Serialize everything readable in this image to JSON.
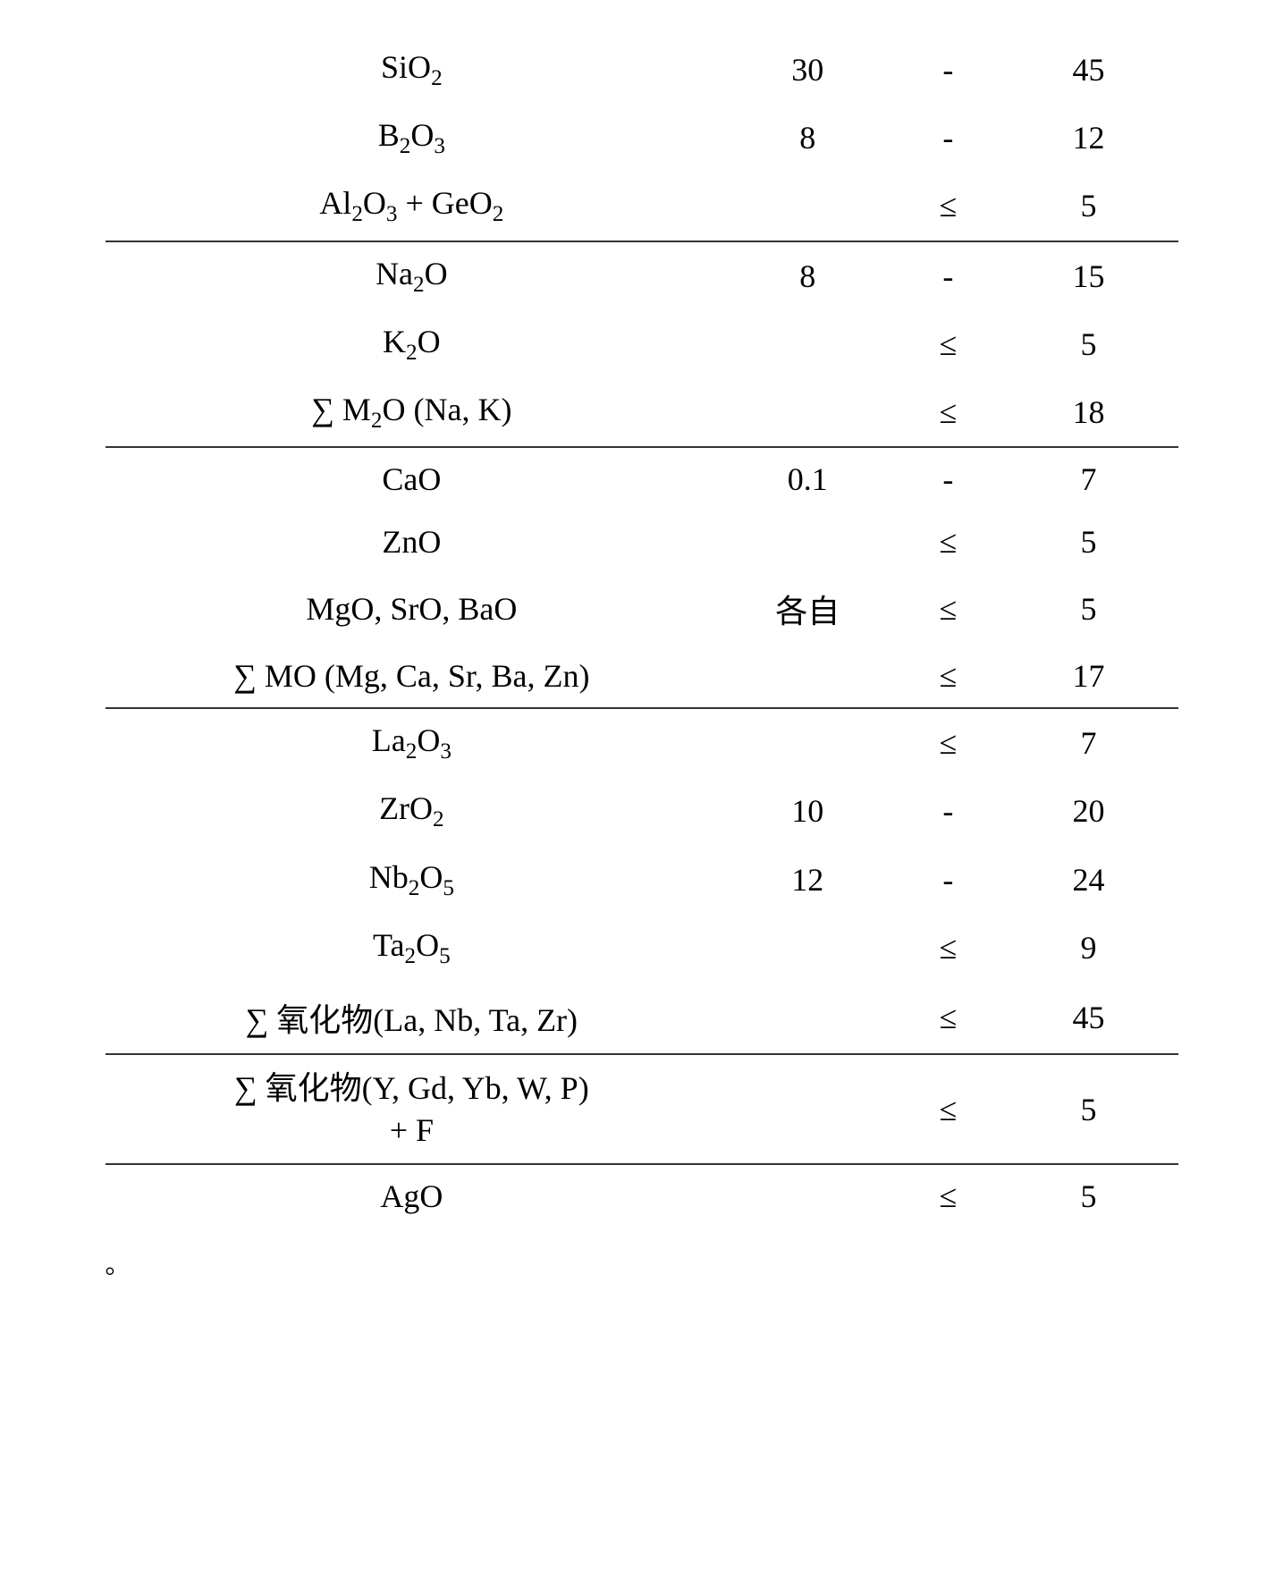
{
  "rows": [
    {
      "formula_html": "SiO<sub>2</sub>",
      "min": "30",
      "op": "-",
      "max": "45",
      "sep": false
    },
    {
      "formula_html": "B<sub>2</sub>O<sub>3</sub>",
      "min": "8",
      "op": "-",
      "max": "12",
      "sep": false
    },
    {
      "formula_html": "Al<sub>2</sub>O<sub>3</sub> + GeO<sub>2</sub>",
      "min": "",
      "op": "≤",
      "max": "5",
      "sep": true
    },
    {
      "formula_html": "Na<sub>2</sub>O",
      "min": "8",
      "op": "-",
      "max": "15",
      "sep": false
    },
    {
      "formula_html": "K<sub>2</sub>O",
      "min": "",
      "op": "≤",
      "max": "5",
      "sep": false
    },
    {
      "formula_html": "∑ M<sub>2</sub>O (Na, K)",
      "min": "",
      "op": "≤",
      "max": "18",
      "sep": true
    },
    {
      "formula_html": "CaO",
      "min": "0.1",
      "op": "-",
      "max": "7",
      "sep": false
    },
    {
      "formula_html": "ZnO",
      "min": "",
      "op": "≤",
      "max": "5",
      "sep": false
    },
    {
      "formula_html": "MgO, SrO, BaO",
      "min": "各自",
      "op": "≤",
      "max": "5",
      "sep": false
    },
    {
      "formula_html": "∑ MO (Mg, Ca, Sr, Ba, Zn)",
      "min": "",
      "op": "≤",
      "max": "17",
      "sep": true
    },
    {
      "formula_html": "La<sub>2</sub>O<sub>3</sub>",
      "min": "",
      "op": "≤",
      "max": "7",
      "sep": false
    },
    {
      "formula_html": "ZrO<sub>2</sub>",
      "min": "10",
      "op": "-",
      "max": "20",
      "sep": false
    },
    {
      "formula_html": "Nb<sub>2</sub>O<sub>5</sub>",
      "min": "12",
      "op": "-",
      "max": "24",
      "sep": false
    },
    {
      "formula_html": "Ta<sub>2</sub>O<sub>5</sub>",
      "min": "",
      "op": "≤",
      "max": "9",
      "sep": false
    },
    {
      "formula_html": "∑ 氧化物(La, Nb, Ta, Zr)",
      "min": "",
      "op": "≤",
      "max": "45",
      "sep": true
    },
    {
      "formula_html": "<div class='twoLine'>∑ 氧化物(Y, Gd, Yb, W, P)<br>+ F</div>",
      "min": "",
      "op": "≤",
      "max": "5",
      "sep": true
    },
    {
      "formula_html": "AgO",
      "min": "",
      "op": "≤",
      "max": "5",
      "sep": false
    }
  ],
  "footer": "。"
}
